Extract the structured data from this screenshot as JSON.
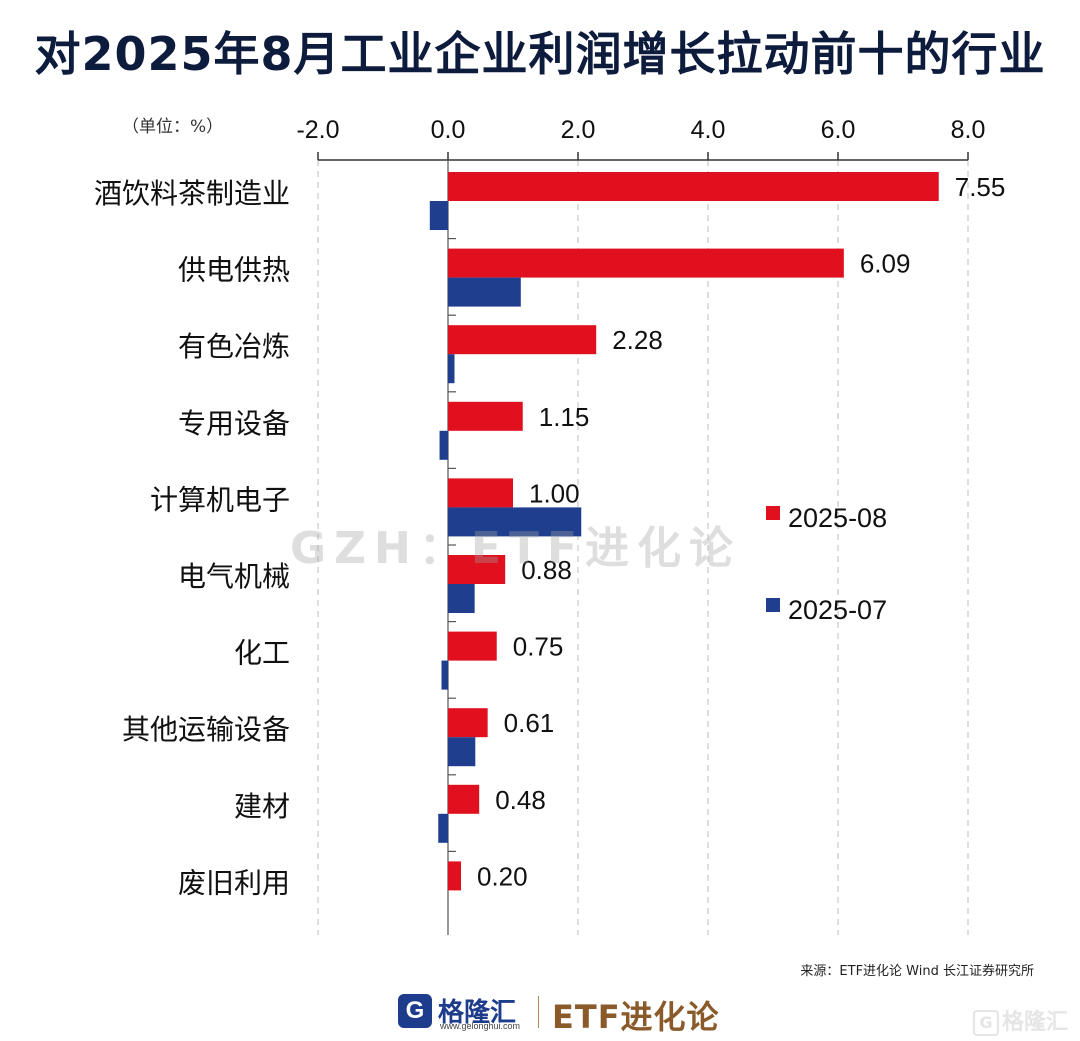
{
  "title": "对2025年8月工业企业利润增长拉动前十的行业",
  "unit_label": "（单位：%）",
  "source_text": "来源：ETF进化论 Wind 长江证券研究所",
  "watermark_text": "GZH：ETF进化论",
  "footer": {
    "logo_mark": "G",
    "logo_name": "格隆汇",
    "logo_url": "www.gelonghui.com",
    "brand": "ETF进化论",
    "corner_mark": "G",
    "corner_text": "格隆汇"
  },
  "colors": {
    "series_aug": "#e0101e",
    "series_jul": "#1f3f8e",
    "title": "#0d1b3d"
  },
  "chart_data": {
    "type": "bar",
    "orientation": "horizontal",
    "categories": [
      "酒饮料茶制造业",
      "供电供热",
      "有色冶炼",
      "专用设备",
      "计算机电子",
      "电气机械",
      "化工",
      "其他运输设备",
      "建材",
      "废旧利用"
    ],
    "series": [
      {
        "name": "2025-08",
        "values": [
          7.55,
          6.09,
          2.28,
          1.15,
          1.0,
          0.88,
          0.75,
          0.61,
          0.48,
          0.2
        ],
        "data_labels": [
          "7.55",
          "6.09",
          "2.28",
          "1.15",
          "1.00",
          "0.88",
          "0.75",
          "0.61",
          "0.48",
          "0.20"
        ]
      },
      {
        "name": "2025-07",
        "values": [
          -0.28,
          1.12,
          0.1,
          -0.13,
          2.05,
          0.41,
          -0.1,
          0.42,
          -0.15,
          0.0
        ]
      }
    ],
    "xlim": [
      -2.0,
      8.0
    ],
    "xticks": [
      "-2.0",
      "0.0",
      "2.0",
      "4.0",
      "6.0",
      "8.0"
    ],
    "xtick_values": [
      -2,
      0,
      2,
      4,
      6,
      8
    ],
    "axis_position": "top",
    "grid": "vertical-dashed",
    "legend_position": "right"
  }
}
